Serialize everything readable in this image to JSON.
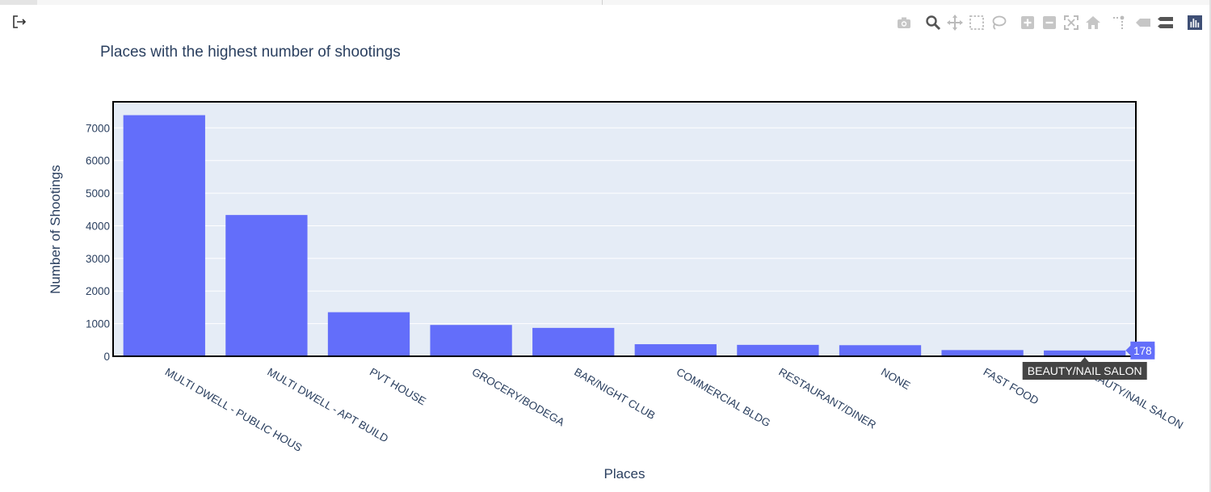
{
  "chart_data": {
    "type": "bar",
    "title": "Places with the highest number of shootings",
    "xlabel": "Places",
    "ylabel": "Number of Shootings",
    "categories": [
      "MULTI DWELL - PUBLIC HOUS",
      "MULTI DWELL - APT BUILD",
      "PVT HOUSE",
      "GROCERY/BODEGA",
      "BAR/NIGHT CLUB",
      "COMMERCIAL BLDG",
      "RESTAURANT/DINER",
      "NONE",
      "FAST FOOD",
      "BEAUTY/NAIL SALON"
    ],
    "values": [
      7390,
      4330,
      1350,
      960,
      870,
      370,
      350,
      340,
      190,
      178
    ],
    "ylim": [
      0,
      7800
    ],
    "yticks": [
      0,
      1000,
      2000,
      3000,
      4000,
      5000,
      6000,
      7000
    ],
    "grid": true,
    "colors": {
      "bar": "#636efa",
      "plot_bg": "#e5ecf6",
      "text": "#2a3f5f"
    },
    "hover": {
      "category": "BEAUTY/NAIL SALON",
      "value": "178"
    }
  },
  "toolbar": {
    "exit_icon": "exit-icon",
    "modebar_icons": [
      "camera-icon",
      "zoom-icon",
      "pan-icon",
      "box-select-icon",
      "lasso-select-icon",
      "zoom-in-icon",
      "zoom-out-icon",
      "autoscale-icon",
      "reset-axes-icon",
      "spike-lines-icon",
      "hover-closest-icon",
      "hover-compare-icon",
      "plotly-logo-icon"
    ]
  }
}
